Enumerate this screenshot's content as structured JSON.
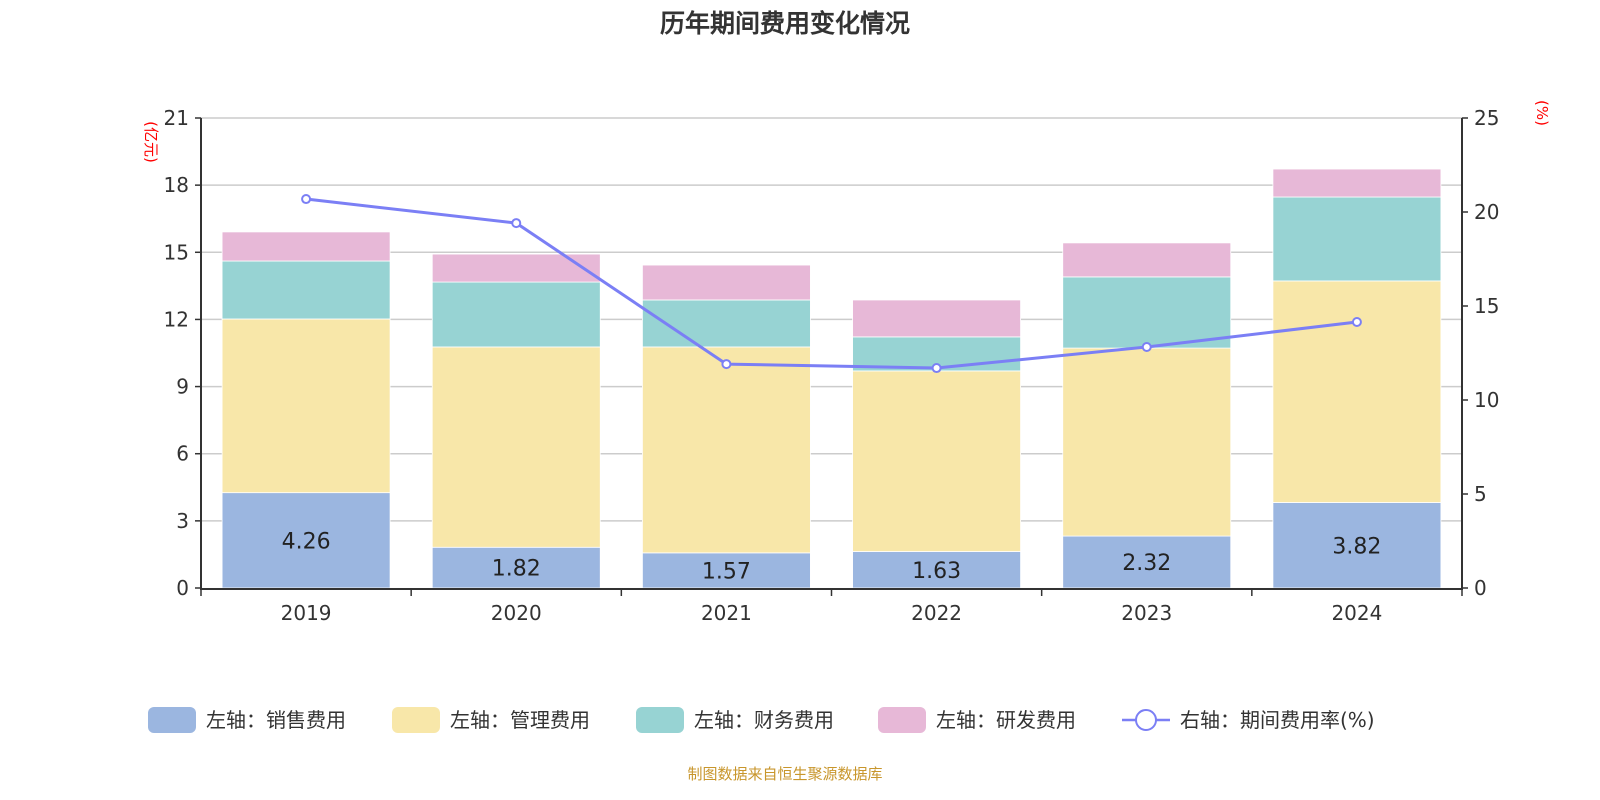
{
  "chart_data": {
    "type": "bar",
    "title": "历年期间费用变化情况",
    "categories": [
      "2019",
      "2020",
      "2021",
      "2022",
      "2023",
      "2024"
    ],
    "left_axis": {
      "unit": "(亿元)",
      "ylim": [
        0,
        21
      ],
      "ticks": [
        0,
        3,
        6,
        9,
        12,
        15,
        18,
        21
      ]
    },
    "right_axis": {
      "unit": "(%)",
      "ylim": [
        0,
        25
      ],
      "ticks": [
        0,
        5,
        10,
        15,
        20,
        25
      ]
    },
    "grid": true,
    "legend_position": "bottom",
    "series": [
      {
        "name": "左轴：销售费用",
        "axis": "left",
        "kind": "bar",
        "color": "#9bb6e0",
        "values": [
          4.26,
          1.82,
          1.57,
          1.63,
          2.32,
          3.82
        ],
        "show_labels": true
      },
      {
        "name": "左轴：管理费用",
        "axis": "left",
        "kind": "bar",
        "color": "#f8e7a9",
        "values": [
          7.76,
          8.95,
          9.2,
          8.07,
          8.4,
          9.9
        ]
      },
      {
        "name": "左轴：财务费用",
        "axis": "left",
        "kind": "bar",
        "color": "#97d3d3",
        "values": [
          2.59,
          2.9,
          2.1,
          1.52,
          3.18,
          3.75
        ]
      },
      {
        "name": "左轴：研发费用",
        "axis": "left",
        "kind": "bar",
        "color": "#e7b8d7",
        "values": [
          1.3,
          1.25,
          1.56,
          1.65,
          1.52,
          1.25
        ]
      },
      {
        "name": "右轴：期间费用率(%)",
        "axis": "right",
        "kind": "line",
        "color": "#7b7ff5",
        "values": [
          20.69,
          19.41,
          11.91,
          11.7,
          12.82,
          14.15
        ]
      }
    ]
  },
  "source": "制图数据来自恒生聚源数据库"
}
